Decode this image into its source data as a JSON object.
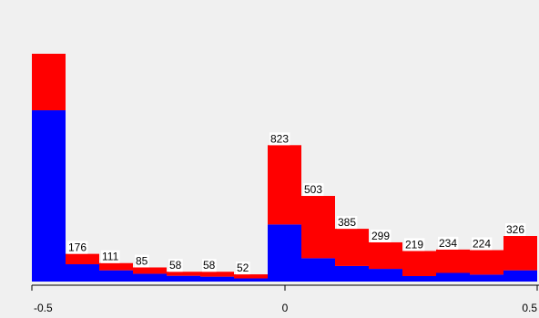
{
  "chart_data": {
    "type": "bar",
    "stacked": true,
    "x_ticks": [
      "-0.5",
      "0",
      "0.5"
    ],
    "bins": [
      {
        "label": "",
        "blue": 594,
        "red": 196
      },
      {
        "label": "176",
        "blue": 60,
        "red": 36
      },
      {
        "label": "111",
        "blue": 39,
        "red": 25
      },
      {
        "label": "85",
        "blue": 27,
        "red": 22
      },
      {
        "label": "58",
        "blue": 20,
        "red": 14
      },
      {
        "label": "58",
        "blue": 17,
        "red": 17
      },
      {
        "label": "52",
        "blue": 11,
        "red": 14
      },
      {
        "label": "823",
        "blue": 198,
        "red": 275
      },
      {
        "label": "503",
        "blue": 81,
        "red": 216
      },
      {
        "label": "385",
        "blue": 54,
        "red": 129
      },
      {
        "label": "299",
        "blue": 44,
        "red": 92
      },
      {
        "label": "219",
        "blue": 19,
        "red": 87
      },
      {
        "label": "234",
        "blue": 30,
        "red": 81
      },
      {
        "label": "224",
        "blue": 24,
        "red": 85
      },
      {
        "label": "326",
        "blue": 39,
        "red": 119
      }
    ],
    "colors": {
      "blue": "#0000ff",
      "red": "#ff0000"
    },
    "grid": false
  }
}
